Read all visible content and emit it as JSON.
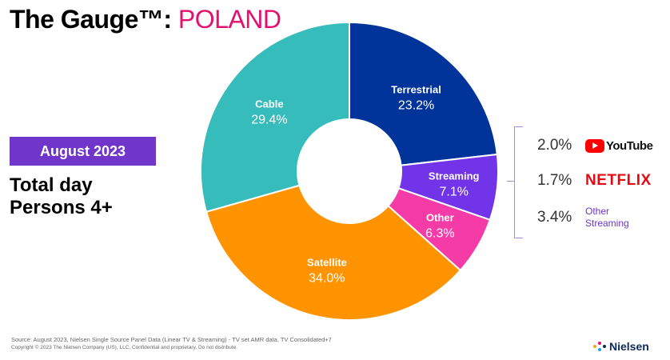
{
  "title": {
    "main": "The Gauge™:",
    "country": "POLAND"
  },
  "month_badge": "August 2023",
  "subtitle": {
    "line1": "Total day",
    "line2": "Persons 4+"
  },
  "chart_data": {
    "type": "pie",
    "style": "donut",
    "unit": "%",
    "slices": [
      {
        "label": "Terrestrial",
        "value": 23.2,
        "value_label": "23.2%",
        "color": "#00349a"
      },
      {
        "label": "Streaming",
        "value": 7.1,
        "value_label": "7.1%",
        "color": "#7134e8"
      },
      {
        "label": "Other",
        "value": 6.3,
        "value_label": "6.3%",
        "color": "#f43ba6"
      },
      {
        "label": "Satellite",
        "value": 34.0,
        "value_label": "34.0%",
        "color": "#ff9300"
      },
      {
        "label": "Cable",
        "value": 29.4,
        "value_label": "29.4%",
        "color": "#36bcbb"
      }
    ],
    "streaming_breakdown": [
      {
        "value": 2.0,
        "value_label": "2.0%",
        "platform": "YouTube"
      },
      {
        "value": 1.7,
        "value_label": "1.7%",
        "platform": "NETFLIX"
      },
      {
        "value": 3.4,
        "value_label": "3.4%",
        "platform": "Other Streaming"
      }
    ]
  },
  "breakdown_labels": {
    "youtube": "YouTube",
    "netflix": "NETFLIX",
    "other_line1": "Other",
    "other_line2": "Streaming"
  },
  "footer": {
    "source": "Source: August  2023, Nielsen Single Source Panel Data (Linear TV & Streaming) -  TV set AMR data, TV Consolidated+7",
    "copyright": "Copyright © 2023 The Nielsen Company (US), LLC. Confidential and proprietary. Do not distribute.",
    "brand": "Nielsen"
  },
  "colors": {
    "accent_magenta": "#e0116f",
    "accent_purple": "#6f36c9",
    "youtube_red": "#ff0000",
    "netflix_red": "#e50914",
    "nielsen_navy": "#0a2a5e"
  }
}
